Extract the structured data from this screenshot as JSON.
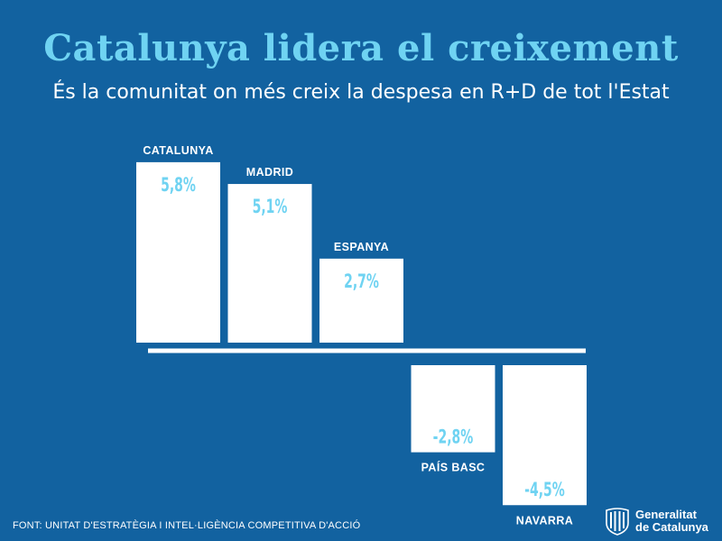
{
  "header": {
    "title": "Catalunya lidera el creixement",
    "subtitle": "És la comunitat on més creix la despesa en R+D de tot l'Estat"
  },
  "chart_data": {
    "type": "bar",
    "title": "Catalunya lidera el creixement",
    "subtitle": "És la comunitat on més creix la despesa en R+D de tot l'Estat",
    "categories": [
      "CATALUNYA",
      "MADRID",
      "ESPANYA",
      "PAÍS BASC",
      "NAVARRA"
    ],
    "values": [
      5.8,
      5.1,
      2.7,
      -2.8,
      -4.5
    ],
    "value_labels": [
      "5,8%",
      "5,1%",
      "2,7%",
      "-2,8%",
      "-4,5%"
    ],
    "unit": "%",
    "xlabel": "",
    "ylabel": "",
    "grid": false
  },
  "footer": {
    "source": "FONT: UNITAT D'ESTRATÈGIA I INTEL·LIGÈNCIA COMPETITIVA D'ACCIÓ",
    "logo_line1": "Generalitat",
    "logo_line2": "de Catalunya"
  },
  "colors": {
    "background": "#1262a0",
    "bar": "#ffffff",
    "value_text": "#6fd3f2",
    "label_text": "#ffffff"
  }
}
